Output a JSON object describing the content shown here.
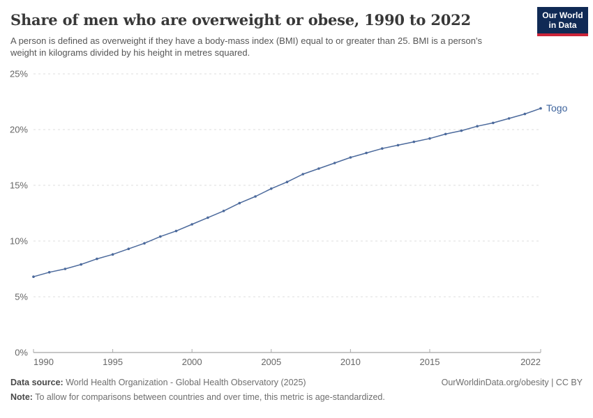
{
  "header": {
    "title": "Share of men who are overweight or obese, 1990 to 2022",
    "subtitle": "A person is defined as overweight if they have a body-mass index (BMI) equal to or greater than 25. BMI is a person's weight in kilograms divided by his height in metres squared.",
    "logo": {
      "line1": "Our World",
      "line2": "in Data",
      "bg_color": "#102a55",
      "accent_color": "#cb2438"
    }
  },
  "chart_data": {
    "type": "line",
    "title": "Share of men who are overweight or obese, 1990 to 2022",
    "xlabel": "",
    "ylabel": "",
    "x": [
      1990,
      1991,
      1992,
      1993,
      1994,
      1995,
      1996,
      1997,
      1998,
      1999,
      2000,
      2001,
      2002,
      2003,
      2004,
      2005,
      2006,
      2007,
      2008,
      2009,
      2010,
      2011,
      2012,
      2013,
      2014,
      2015,
      2016,
      2017,
      2018,
      2019,
      2020,
      2021,
      2022
    ],
    "series": [
      {
        "name": "Togo",
        "color": "#4C6A9C",
        "values": [
          6.8,
          7.2,
          7.5,
          7.9,
          8.4,
          8.8,
          9.3,
          9.8,
          10.4,
          10.9,
          11.5,
          12.1,
          12.7,
          13.4,
          14.0,
          14.7,
          15.3,
          16.0,
          16.5,
          17.0,
          17.5,
          17.9,
          18.3,
          18.6,
          18.9,
          19.2,
          19.6,
          19.9,
          20.3,
          20.6,
          21.0,
          21.4,
          21.9
        ]
      }
    ],
    "xlim": [
      1990,
      2022
    ],
    "ylim": [
      0,
      25
    ],
    "yticks": [
      0,
      5,
      10,
      15,
      20,
      25
    ],
    "ytick_suffix": "%",
    "xticks": [
      1990,
      1995,
      2000,
      2005,
      2010,
      2015,
      2022
    ],
    "grid": "horizontal-dashed",
    "legend_position": "end-of-line",
    "entity_label": "Togo",
    "entity_label_color": "#3d639c",
    "gridline_color": "#dcdcdc",
    "axis_color": "#8f8f8f",
    "tick_label_color": "#666666"
  },
  "footer": {
    "datasource_label": "Data source:",
    "datasource_text": "World Health Organization - Global Health Observatory (2025)",
    "note_label": "Note:",
    "note_text": "To allow for comparisons between countries and over time, this metric is age-standardized.",
    "link_text": "OurWorldinData.org/obesity | CC BY"
  }
}
